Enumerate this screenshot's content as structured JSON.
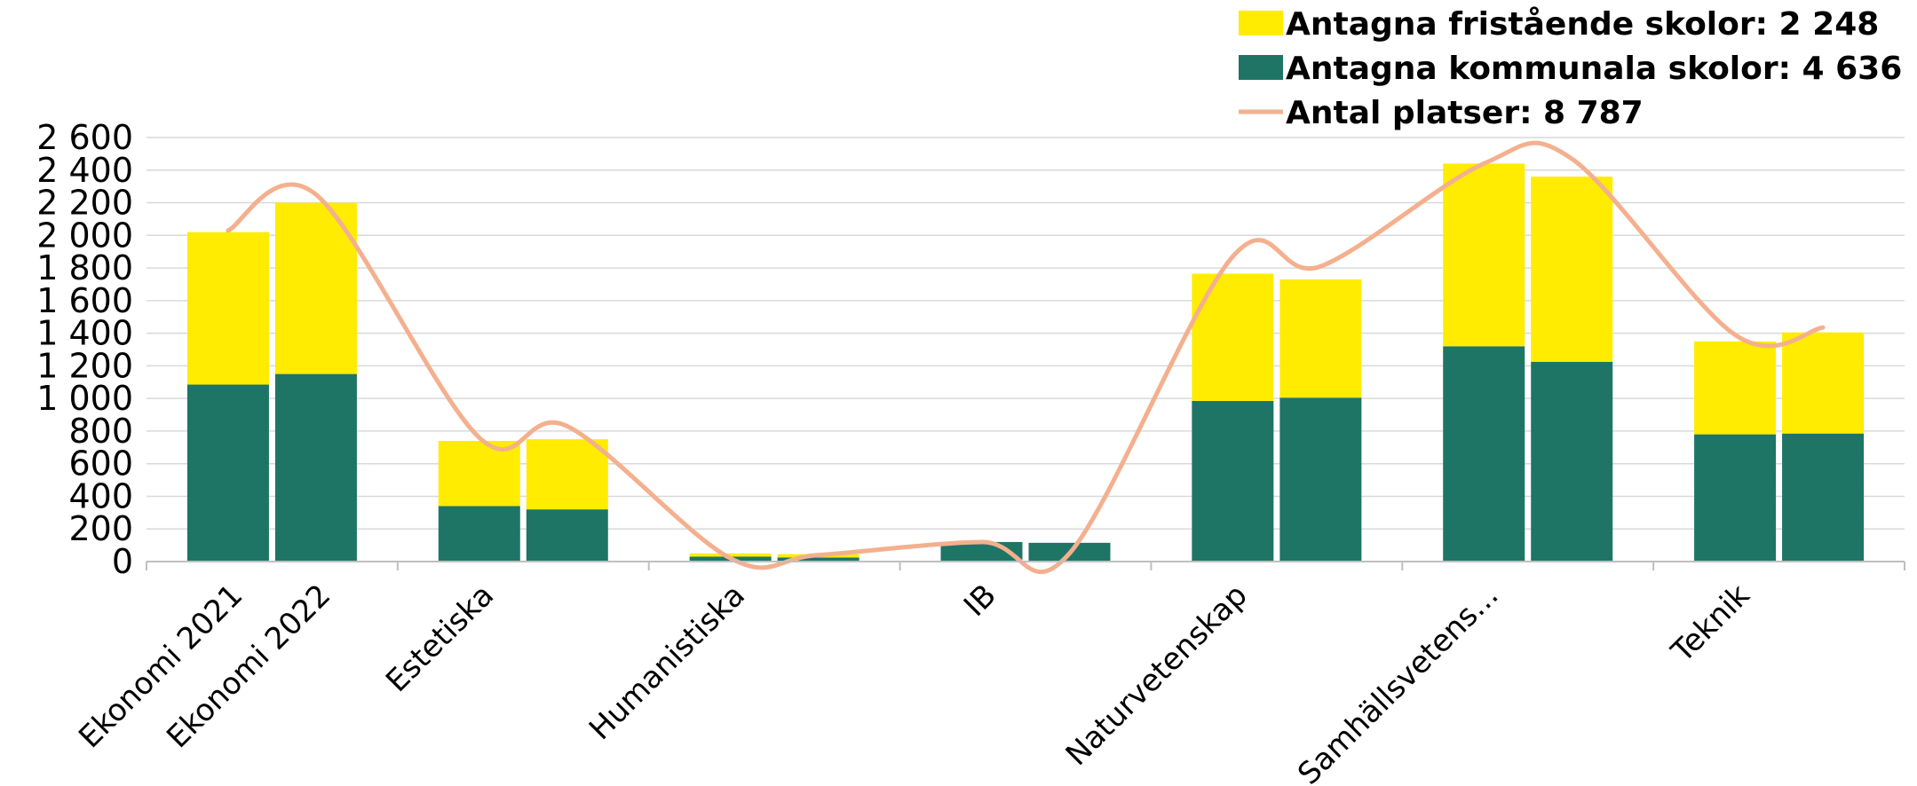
{
  "chart_data": {
    "type": "bar",
    "stacked": true,
    "title": "",
    "xlabel": "",
    "ylabel": "",
    "ylim": [
      0,
      2600
    ],
    "yticks": [
      0,
      200,
      400,
      600,
      800,
      1000,
      1200,
      1400,
      1600,
      1800,
      2000,
      2200,
      2400,
      2600
    ],
    "ytick_labels": [
      "0",
      "200",
      "400",
      "600",
      "800",
      "1 000",
      "1 200",
      "1 400",
      "1 600",
      "1 800",
      "2 000",
      "2 200",
      "2 400",
      "2 600"
    ],
    "grid": true,
    "legend_position": "top-right",
    "groups": [
      {
        "label": "Ekonomi 2021",
        "bars": 1
      },
      {
        "label": "Ekonomi 2022",
        "bars": 1
      },
      {
        "label": "Estetiska",
        "bars": 2
      },
      {
        "label": "Humanistiska",
        "bars": 2
      },
      {
        "label": "IB",
        "bars": 2
      },
      {
        "label": "Naturvetenskap",
        "bars": 2
      },
      {
        "label": "Samhällsvetens...",
        "bars": 2
      },
      {
        "label": "Teknik",
        "bars": 2
      }
    ],
    "series": [
      {
        "name": "Antagna kommunala skolor: 4 636",
        "color": "#1e7566",
        "kind": "bar",
        "values": [
          1085,
          1150,
          340,
          320,
          30,
          25,
          120,
          115,
          985,
          1005,
          1320,
          1225,
          780,
          785
        ]
      },
      {
        "name": "Antagna fristående skolor: 2 248",
        "color": "#ffec00",
        "kind": "bar",
        "values": [
          935,
          1050,
          400,
          430,
          20,
          20,
          0,
          0,
          780,
          725,
          1120,
          1135,
          570,
          620
        ]
      },
      {
        "name": "Antal platser: 8 787",
        "color": "#f4b08e",
        "kind": "line",
        "values": [
          2030,
          2250,
          760,
          830,
          20,
          40,
          120,
          50,
          1870,
          1810,
          2440,
          2470,
          1390,
          1435
        ]
      }
    ],
    "legend": [
      {
        "name": "Antagna fristående skolor: 2 248",
        "color": "#ffec00",
        "marker": "rect"
      },
      {
        "name": "Antagna kommunala skolor: 4 636",
        "color": "#1e7566",
        "marker": "rect"
      },
      {
        "name": "Antal platser: 8 787",
        "color": "#f4b08e",
        "marker": "line"
      }
    ]
  }
}
